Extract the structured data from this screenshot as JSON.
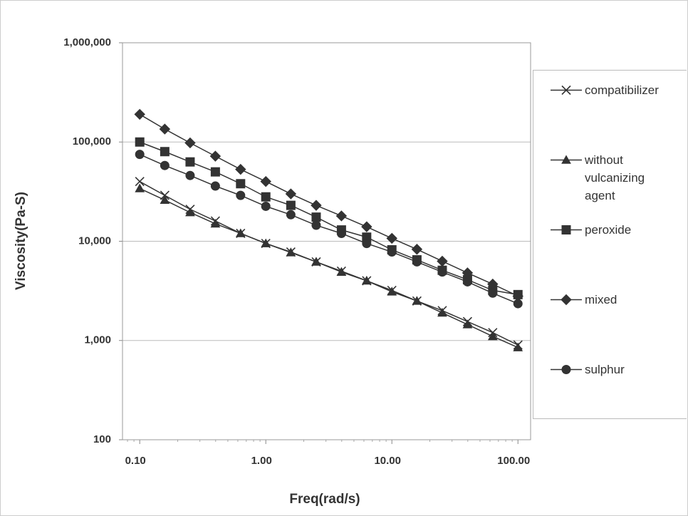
{
  "chart_data": {
    "type": "line",
    "y_label": "Viscosity(Pa-S)",
    "x_label": "Freq(rad/s)",
    "xscale": "log",
    "yscale": "log",
    "grid": true,
    "legend": "right",
    "x": [
      0.1,
      0.158,
      0.251,
      0.398,
      0.631,
      1,
      1.58,
      2.51,
      3.98,
      6.31,
      10,
      15.8,
      25.1,
      39.8,
      63.1,
      100
    ],
    "xlim": [
      0.073,
      126
    ],
    "xticks": [
      {
        "value": 0.1,
        "label": "0.10"
      },
      {
        "value": 1,
        "label": "1.00"
      },
      {
        "value": 10,
        "label": "10.00"
      },
      {
        "value": 100,
        "label": "100.00"
      }
    ],
    "ylim": [
      100,
      1000000
    ],
    "yticks": [
      100,
      {
        "value": 1000,
        "label": "1,000"
      },
      {
        "value": 10000,
        "label": "10,000"
      },
      {
        "value": 100000,
        "label": "100,000"
      },
      {
        "value": 1000000,
        "label": "1,000,000"
      }
    ],
    "series": [
      {
        "name": "compatibilizer",
        "color": "#333333",
        "marker": "x",
        "values": [
          40000,
          29000,
          21000,
          16000,
          12000,
          9500,
          7800,
          6200,
          5000,
          4000,
          3200,
          2500,
          2000,
          1550,
          1200,
          900
        ]
      },
      {
        "name": "without vulcanizing agent",
        "color": "#333333",
        "marker": "triangle",
        "values": [
          34000,
          26000,
          19500,
          15000,
          12000,
          9500,
          7700,
          6200,
          4900,
          4000,
          3100,
          2500,
          1900,
          1450,
          1100,
          850
        ]
      },
      {
        "name": "peroxide",
        "color": "#333333",
        "marker": "square",
        "values": [
          100000,
          80000,
          63000,
          50000,
          38000,
          28000,
          23000,
          17500,
          13000,
          11000,
          8200,
          6500,
          5100,
          4100,
          3200,
          2900
        ]
      },
      {
        "name": "mixed",
        "color": "#333333",
        "marker": "diamond",
        "values": [
          190000,
          135000,
          98000,
          72000,
          53000,
          40000,
          30000,
          23000,
          18000,
          14000,
          10700,
          8300,
          6300,
          4800,
          3700,
          2800
        ]
      },
      {
        "name": "sulphur",
        "color": "#333333",
        "marker": "circle",
        "values": [
          75000,
          58000,
          46000,
          36000,
          29000,
          22500,
          18500,
          14500,
          12000,
          9500,
          7800,
          6200,
          4900,
          3900,
          3000,
          2350
        ]
      }
    ]
  }
}
